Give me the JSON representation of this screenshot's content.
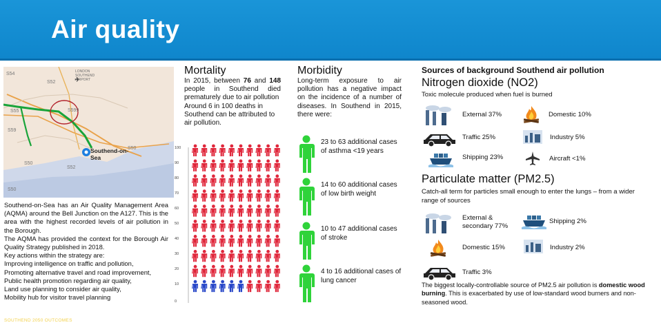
{
  "header": {
    "title": "Air quality"
  },
  "map": {
    "labels": [
      "S54",
      "S52",
      "S55",
      "S599",
      "S59",
      "S50",
      "S52",
      "S50",
      "S50"
    ],
    "airport_label": "LONDON SOUTHEND AIRPORT",
    "town_label": "Southend-on-Sea"
  },
  "left_text": {
    "intro": "Southend-on-Sea has an Air Quality Management Area (AQMA) around the Bell Junction on the A127. This is the area with the highest recorded levels of air pollution in the Borough.",
    "strategy": "The AQMA has provided the context for the Borough Air Quality Strategy published in 2018.",
    "actions_heading": "Key actions within the strategy are:",
    "actions": [
      "Improving intelligence on traffic and pollution,",
      "Promoting alternative travel and road improvement,",
      "Public health promotion regarding air quality,",
      "Land use planning to consider air quality,",
      "Mobility hub for visitor travel planning"
    ]
  },
  "footer": {
    "mark": "SOUTHEND 2050 OUTCOMES"
  },
  "mortality": {
    "title": "Mortality",
    "line_pre": "In 2015, between",
    "low": "76",
    "mid": "and",
    "high": "148",
    "line_post": "people in Southend died prematurely due to air pollution",
    "deaths": "Around 6 in 100 deaths in Southend can be attributed to air pollution.",
    "axis_ticks": [
      "100",
      "90",
      "80",
      "70",
      "60",
      "50",
      "40",
      "30",
      "20",
      "10",
      "0"
    ],
    "pictogram": {
      "total": 100,
      "highlighted": 6,
      "colors": {
        "main": "#e0283c",
        "highlight": "#2746c8"
      }
    }
  },
  "morbidity": {
    "title": "Morbidity",
    "intro": "Long-term exposure to air pollution has a negative impact on the incidence of a number of diseases. In Southend in 2015, there were:",
    "items": [
      {
        "text": "23 to 63 additional cases of asthma <19 years"
      },
      {
        "text": "14 to 60 additional cases of low birth weight"
      },
      {
        "text": "10 to 47 additional cases of stroke"
      },
      {
        "text": "4 to 16 additional cases of lung cancer"
      }
    ],
    "icon_color": "#2fd33a"
  },
  "sources": {
    "heading": "Sources of background Southend air pollution",
    "no2": {
      "title": "Nitrogen dioxide (NO2)",
      "subtitle": "Toxic molecule produced when fuel is burned",
      "items": [
        {
          "label": "External 37%",
          "icon": "factory-icon"
        },
        {
          "label": "Domestic 10%",
          "icon": "fire-icon"
        },
        {
          "label": "Traffic 25%",
          "icon": "car-icon"
        },
        {
          "label": "Industry 5%",
          "icon": "industry-icon"
        },
        {
          "label": "Shipping 23%",
          "icon": "ship-icon"
        },
        {
          "label": "Aircraft <1%",
          "icon": "aircraft-icon"
        }
      ]
    },
    "pm25": {
      "title": "Particulate matter (PM2.5)",
      "subtitle": "Catch-all term for particles small enough to enter the lungs – from a wider range of sources",
      "items": [
        {
          "label_line1": "External &",
          "label_line2": "secondary 77%",
          "icon": "factory-icon"
        },
        {
          "label": "Shipping 2%",
          "icon": "ship-icon"
        },
        {
          "label": "Domestic 15%",
          "icon": "fire-icon"
        },
        {
          "label": "Industry 2%",
          "icon": "industry-icon"
        },
        {
          "label": "Traffic 3%",
          "icon": "car-icon"
        }
      ]
    },
    "note_pre": "The biggest locally-controllable source of PM2.5 air pollution is",
    "note_bold": "domestic wood burning",
    "note_post": ". This is exacerbated by use of low-standard wood burners and non-seasoned wood."
  }
}
